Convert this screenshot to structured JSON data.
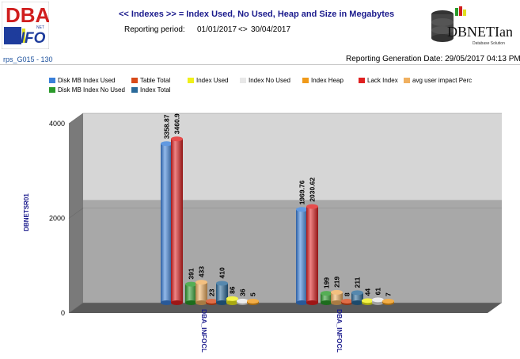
{
  "header": {
    "logo_left_text": "DBA",
    "logo_left_sub": "INFO",
    "logo_left_badge": "NET",
    "title": "<< Indexes >> = Index Used, No Used, Heap and Size in Megabytes",
    "period_label": "Reporting period:",
    "period_from": "01/01/2017",
    "period_sep": "<>",
    "period_to": "30/04/2017",
    "report_id": "rps_G015 - 130",
    "generation_date": "Reporting Generation Date: 29/05/2017 04:13 PM",
    "logo_right_text": "DBNETIan",
    "logo_right_sub": "Database Solution"
  },
  "colors": {
    "accent": "#1a1a8c",
    "series": [
      "#3a7fd9",
      "#2a9a2a",
      "#d84a1a",
      "#2a6a9a",
      "#f0f01a",
      "#e8e8e8",
      "#f09a1a",
      "#e02020",
      "#f0b060"
    ]
  },
  "chart_data": {
    "type": "bar",
    "title": "",
    "xlabel": "",
    "ylabel": "DBNETSR01",
    "ylim": [
      0,
      4000
    ],
    "yticks": [
      0,
      2000,
      4000
    ],
    "legend_position": "top",
    "categories": [
      "DBA_INFOCL",
      "DBA_INFOCL"
    ],
    "series": [
      {
        "name": "Disk MB Index Used",
        "values": [
          3358.87,
          1969.76
        ],
        "labels": [
          "3358.87",
          "1969.76"
        ]
      },
      {
        "name": "Disk MB Index No Used",
        "values": [
          3460.9,
          2030.62
        ],
        "labels": [
          "3460.9",
          "2030.62"
        ]
      },
      {
        "name": "Table Total",
        "values": [
          391,
          199
        ],
        "labels": [
          "391",
          "199"
        ]
      },
      {
        "name": "Index Total",
        "values": [
          433,
          219
        ],
        "labels": [
          "433",
          "219"
        ]
      },
      {
        "name": "Index Used",
        "values": [
          23,
          8
        ],
        "labels": [
          "23",
          "8"
        ]
      },
      {
        "name": "Index No Used",
        "values": [
          410,
          211
        ],
        "labels": [
          "410",
          "211"
        ]
      },
      {
        "name": "Index Heap",
        "values": [
          86,
          44
        ],
        "labels": [
          "86",
          "44"
        ]
      },
      {
        "name": "Lack Index",
        "values": [
          36,
          61
        ],
        "labels": [
          "36",
          "61"
        ]
      },
      {
        "name": "avg user impact Perc",
        "values": [
          5,
          7
        ],
        "labels": [
          "5",
          "7"
        ]
      }
    ]
  }
}
